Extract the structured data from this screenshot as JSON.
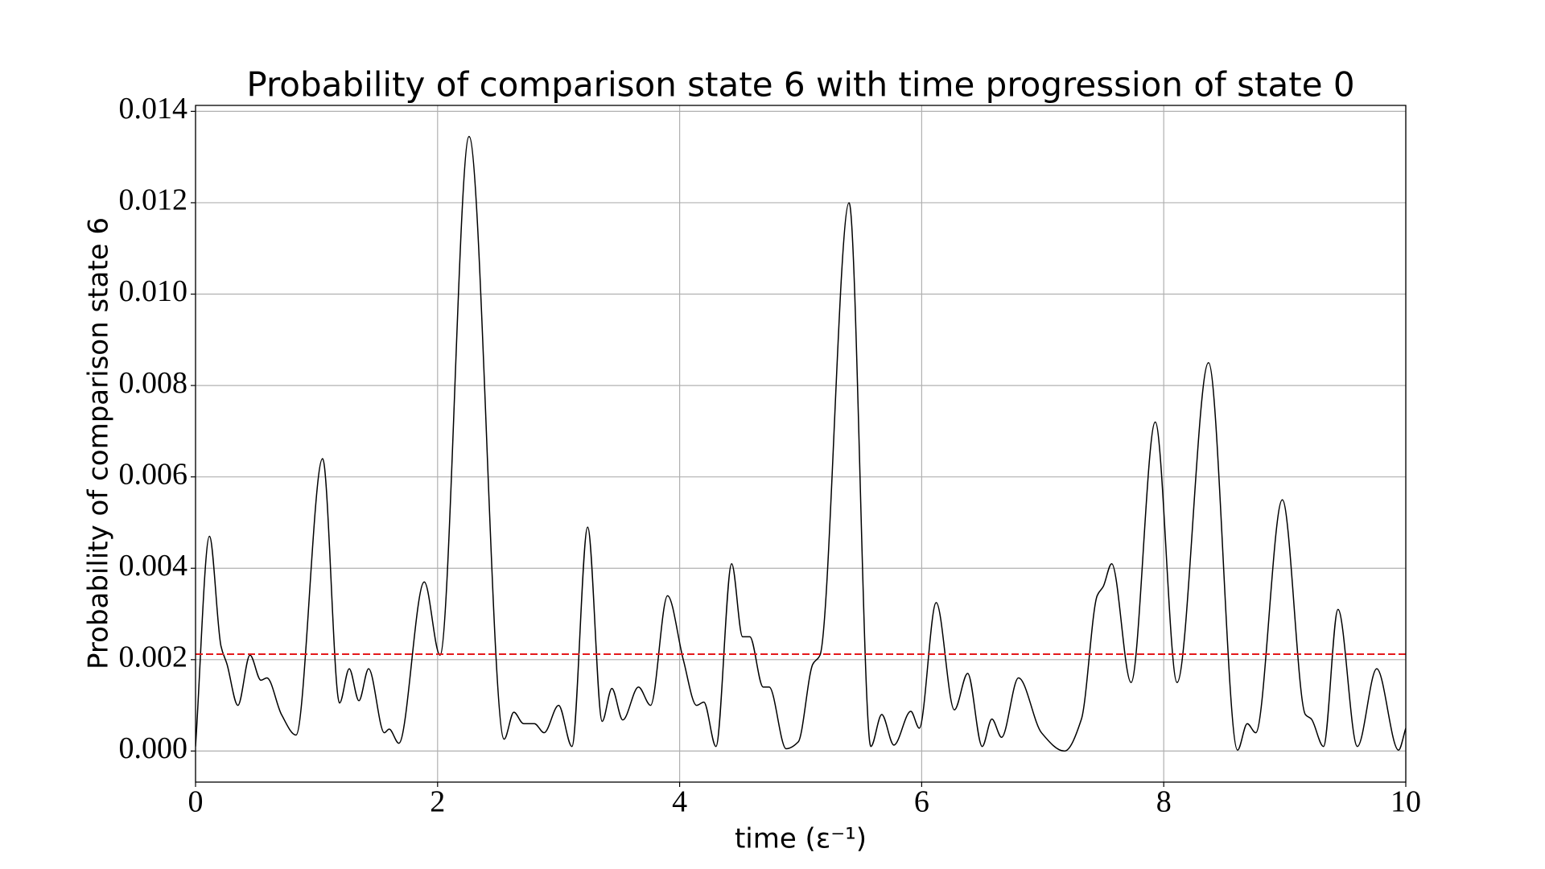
{
  "chart_data": {
    "type": "line",
    "title": "Probability of comparison state 6 with time progression of state 0",
    "xlabel": "time (ε⁻¹)",
    "ylabel": "Probability of comparison state 6",
    "x": [
      0,
      0.115,
      0.21,
      0.26,
      0.35,
      0.45,
      0.54,
      0.59,
      0.71,
      0.83,
      1.05,
      1.19,
      1.27,
      1.35,
      1.43,
      1.56,
      1.6,
      1.68,
      1.89,
      2.02,
      2.26,
      2.55,
      2.63,
      2.71,
      2.8,
      2.88,
      3.0,
      3.11,
      3.24,
      3.36,
      3.44,
      3.53,
      3.66,
      3.76,
      3.9,
      4.03,
      4.14,
      4.2,
      4.3,
      4.43,
      4.52,
      4.58,
      4.69,
      4.74,
      4.88,
      4.98,
      5.1,
      5.16,
      5.4,
      5.58,
      5.67,
      5.77,
      5.91,
      5.98,
      6.12,
      6.27,
      6.38,
      6.5,
      6.58,
      6.66,
      6.8,
      6.99,
      7.18,
      7.32,
      7.45,
      7.5,
      7.57,
      7.73,
      7.93,
      8.11,
      8.37,
      8.61,
      8.69,
      8.76,
      8.98,
      9.17,
      9.22,
      9.32,
      9.44,
      9.6,
      9.76,
      9.94,
      10
    ],
    "series": [
      {
        "color": "#000000",
        "values": [
          0.0001,
          0.0047,
          0.0023,
          0.0019,
          0.001,
          0.0021,
          0.00155,
          0.0016,
          0.0008,
          0.00035,
          0.0064,
          0.00105,
          0.0018,
          0.0011,
          0.0018,
          0.0004,
          0.00048,
          0.00017,
          0.0037,
          0.0021,
          0.01345,
          0.00026,
          0.00085,
          0.0006,
          0.0006,
          0.0004,
          0.001,
          0.0001,
          0.0049,
          0.00065,
          0.00137,
          0.00068,
          0.0014,
          0.001,
          0.0034,
          0.002,
          0.001,
          0.00107,
          0.0001,
          0.0041,
          0.0025,
          0.0025,
          0.0014,
          0.0014,
          5e-05,
          0.0002,
          0.0019,
          0.0021,
          0.012,
          0.0001,
          0.0008,
          0.00013,
          0.00087,
          0.0005,
          0.00325,
          0.0009,
          0.0017,
          0.0001,
          0.0007,
          0.0003,
          0.0016,
          0.0004,
          0.0,
          0.0007,
          0.0034,
          0.0036,
          0.0041,
          0.0015,
          0.0072,
          0.0015,
          0.0085,
          2e-05,
          0.0006,
          0.0004,
          0.0055,
          0.0008,
          0.0007,
          0.0001,
          0.0031,
          0.0001,
          0.0018,
          2e-05,
          0.0005
        ]
      }
    ],
    "hline": {
      "value": 0.00212,
      "color": "#e41a1c"
    },
    "xlim": [
      0,
      10
    ],
    "ylim": [
      -0.00068,
      0.01413
    ],
    "xticks": [
      0,
      2,
      4,
      6,
      8,
      10
    ],
    "yticks": [
      {
        "value": 0,
        "label": "0.000"
      },
      {
        "value": 0.002,
        "label": "0.002"
      },
      {
        "value": 0.004,
        "label": "0.004"
      },
      {
        "value": 0.006,
        "label": "0.006"
      },
      {
        "value": 0.008,
        "label": "0.008"
      },
      {
        "value": 0.01,
        "label": "0.010"
      },
      {
        "value": 0.012,
        "label": "0.012"
      },
      {
        "value": 0.014,
        "label": "0.014"
      }
    ],
    "grid": true
  }
}
